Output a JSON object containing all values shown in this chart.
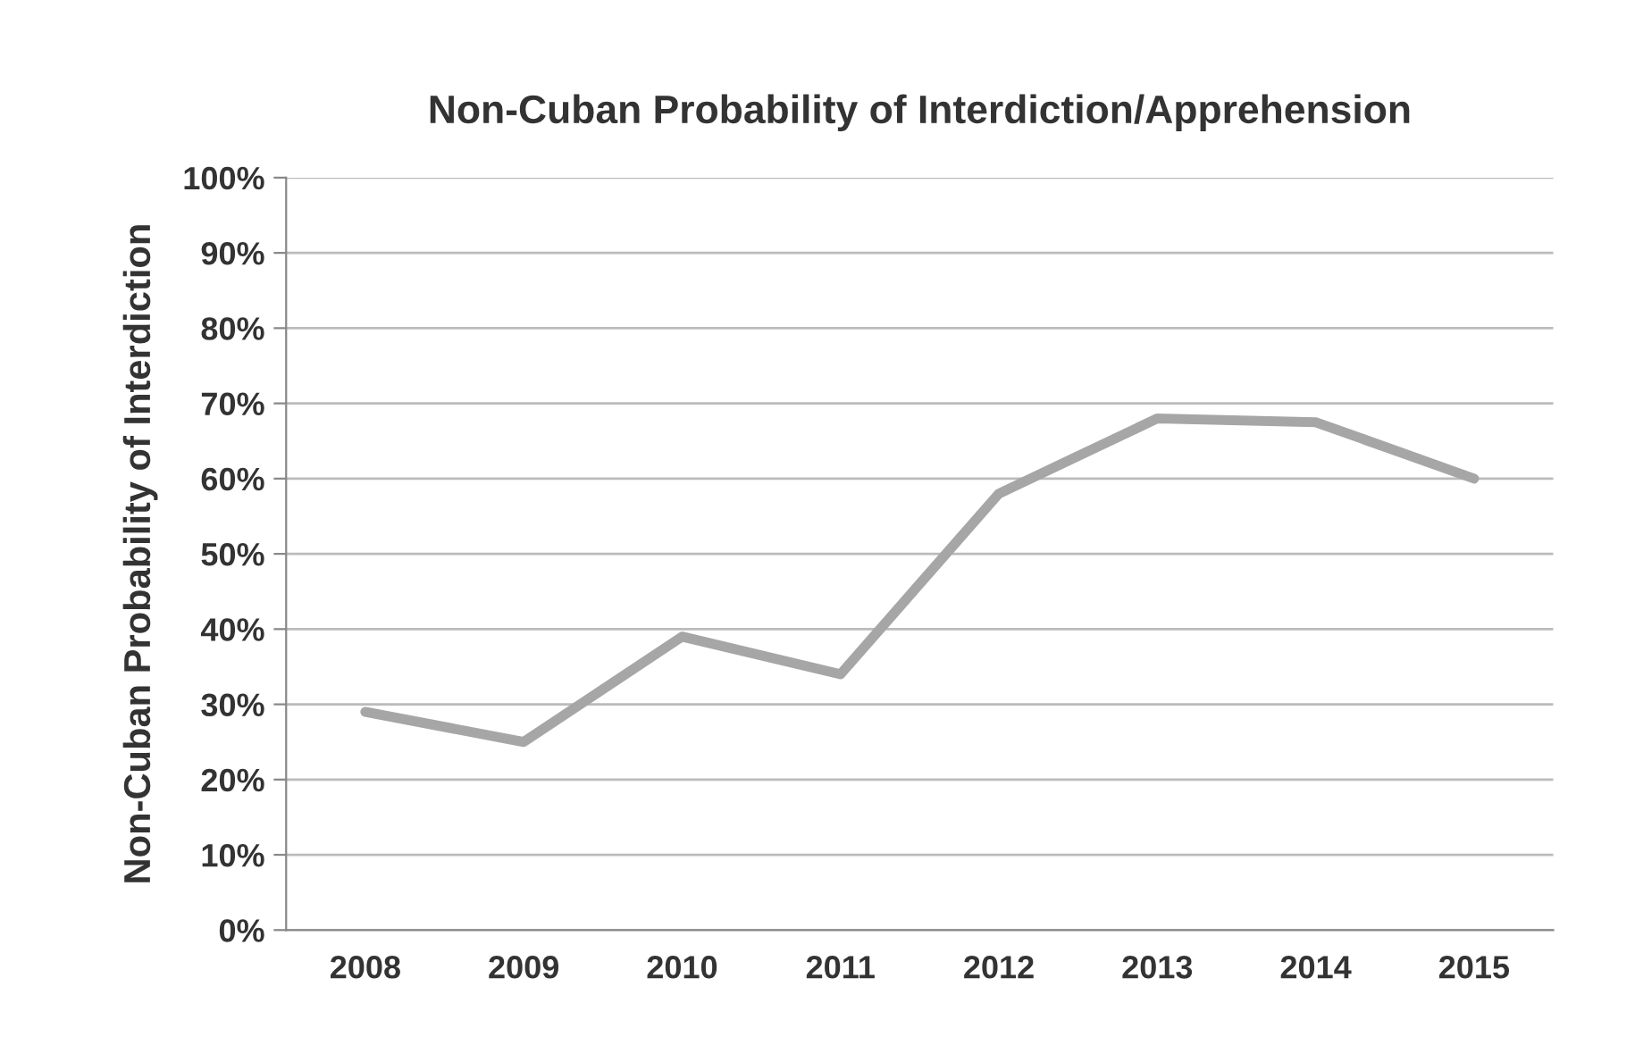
{
  "chart_data": {
    "type": "line",
    "title": "Non-Cuban Probability of Interdiction/Apprehension",
    "ylabel": "Non-Cuban Probability of Interdiction",
    "categories": [
      "2008",
      "2009",
      "2010",
      "2011",
      "2012",
      "2013",
      "2014",
      "2015"
    ],
    "series": [
      {
        "color": "#a6a6a6",
        "values": [
          29,
          25,
          39,
          34,
          58,
          68,
          67.5,
          60
        ]
      }
    ],
    "ylim": [
      0,
      100
    ],
    "yticks": [
      {
        "value": 0,
        "label": "0%"
      },
      {
        "value": 10,
        "label": "10%"
      },
      {
        "value": 20,
        "label": "20%"
      },
      {
        "value": 30,
        "label": "30%"
      },
      {
        "value": 40,
        "label": "40%"
      },
      {
        "value": 50,
        "label": "50%"
      },
      {
        "value": 60,
        "label": "60%"
      },
      {
        "value": 70,
        "label": "70%"
      },
      {
        "value": 80,
        "label": "80%"
      },
      {
        "value": 90,
        "label": "90%"
      },
      {
        "value": 100,
        "label": "100%"
      }
    ],
    "grid": "y",
    "marker": "none",
    "line_style": "solid"
  }
}
